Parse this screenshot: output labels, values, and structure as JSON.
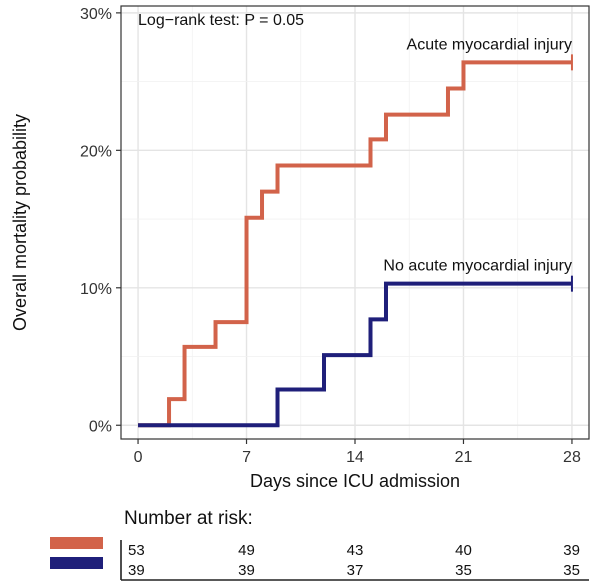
{
  "chart_data": {
    "type": "line",
    "subtype": "kaplan-meier step",
    "xlabel": "Days since ICU admission",
    "ylabel": "Overall mortality probability",
    "x_ticks": [
      0,
      7,
      14,
      21,
      28
    ],
    "y_ticks": [
      0,
      10,
      20,
      30
    ],
    "y_tick_labels": [
      "0%",
      "10%",
      "20%",
      "30%"
    ],
    "xlim": [
      -1.1,
      29.1
    ],
    "ylim": [
      -1.0,
      30.5
    ],
    "grid": true,
    "annotation": "Log−rank test: P = 0.05",
    "series": [
      {
        "name": "Acute myocardial injury",
        "color": "#D2634A",
        "x": [
          0,
          2,
          3,
          5,
          7,
          8,
          9,
          15,
          16,
          20,
          21,
          28
        ],
        "y": [
          0,
          1.9,
          5.7,
          7.5,
          15.1,
          17.0,
          18.9,
          20.8,
          22.6,
          24.5,
          26.4,
          26.4
        ]
      },
      {
        "name": "No acute myocardial injury",
        "color": "#1F1F7A",
        "x": [
          0,
          9,
          12,
          15,
          16,
          28
        ],
        "y": [
          0,
          2.6,
          5.1,
          7.7,
          10.3,
          10.3
        ]
      }
    ],
    "risk_table": {
      "title": "Number at risk:",
      "times": [
        0,
        7,
        14,
        21,
        28
      ],
      "rows": [
        {
          "color": "#D2634A",
          "values": [
            "53",
            "49",
            "43",
            "40",
            "39"
          ]
        },
        {
          "color": "#1F1F7A",
          "values": [
            "39",
            "39",
            "37",
            "35",
            "35"
          ]
        }
      ]
    }
  }
}
